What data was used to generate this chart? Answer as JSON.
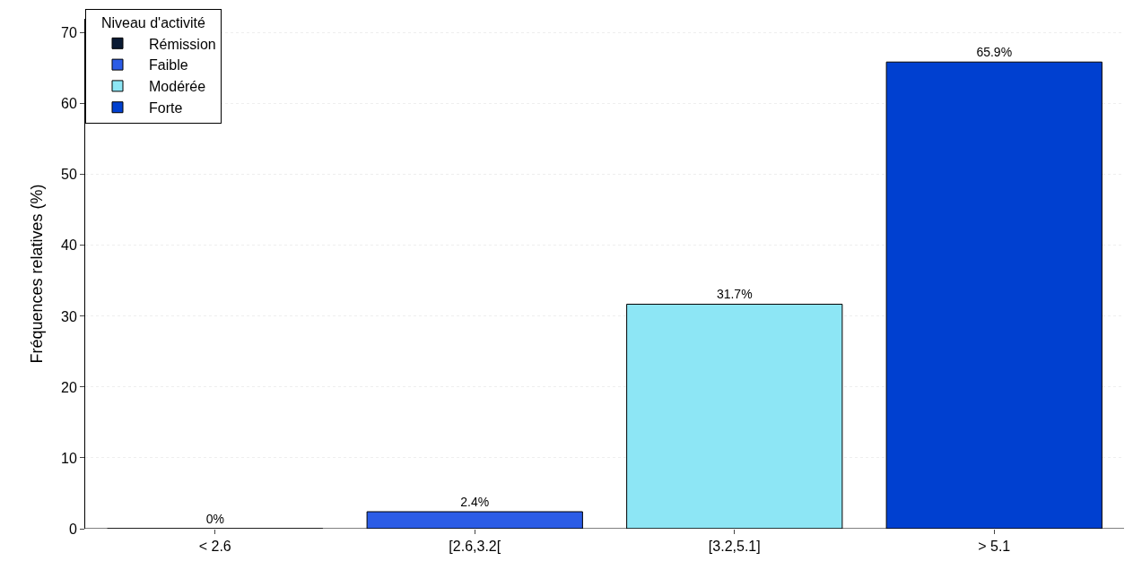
{
  "chart_data": {
    "type": "bar",
    "ylabel": "Fréquences relatives (%)",
    "legend_title": "Niveau d'activité",
    "categories": [
      "< 2.6",
      "[2.6,3.2[",
      "[3.2,5.1]",
      "> 5.1"
    ],
    "series": [
      {
        "name": "Rémission",
        "color": "#0a1a33",
        "values": [
          0,
          null,
          null,
          null
        ],
        "value_labels": [
          "0%",
          null,
          null,
          null
        ]
      },
      {
        "name": "Faible",
        "color": "#2b5ce6",
        "values": [
          null,
          2.4,
          null,
          null
        ],
        "value_labels": [
          null,
          "2.4%",
          null,
          null
        ]
      },
      {
        "name": "Modérée",
        "color": "#8de6f5",
        "values": [
          null,
          null,
          31.7,
          null
        ],
        "value_labels": [
          null,
          null,
          "31.7%",
          null
        ]
      },
      {
        "name": "Forte",
        "color": "#0040d0",
        "values": [
          null,
          null,
          null,
          65.9
        ],
        "value_labels": [
          null,
          null,
          null,
          "65.9%"
        ]
      }
    ],
    "ylim": [
      0,
      72
    ],
    "yticks": [
      0,
      10,
      20,
      30,
      40,
      50,
      60,
      70
    ],
    "grid": "y",
    "legend": "top left"
  }
}
